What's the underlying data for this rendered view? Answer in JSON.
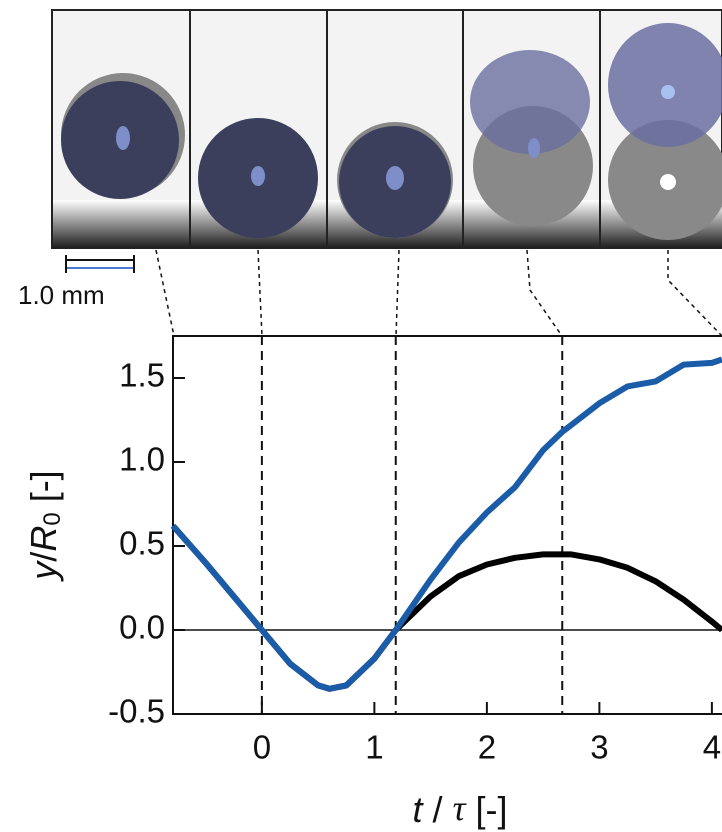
{
  "chart_data": {
    "type": "line",
    "scale_bar": "1.0 mm",
    "xlabel": [
      "t",
      " / ",
      "τ",
      " [-]"
    ],
    "ylabel": [
      "y",
      "/",
      "R",
      "0",
      " [-]"
    ],
    "x": [
      -0.79,
      -0.5,
      -0.25,
      0,
      0.25,
      0.5,
      0.6,
      0.75,
      1.0,
      1.19,
      1.5,
      1.75,
      2.0,
      2.25,
      2.5,
      2.67,
      2.75,
      3.0,
      3.25,
      3.5,
      3.75,
      4.0,
      4.09
    ],
    "series": [
      {
        "color": "#000000",
        "values": [
          0.62,
          0.4,
          0.2,
          0.0,
          -0.2,
          -0.33,
          -0.35,
          -0.33,
          -0.17,
          0.0,
          0.2,
          0.32,
          0.39,
          0.43,
          0.45,
          0.45,
          0.45,
          0.42,
          0.37,
          0.29,
          0.18,
          0.05,
          0.0
        ]
      },
      {
        "color": "#1a5ca8",
        "values": [
          0.62,
          0.4,
          0.2,
          0.0,
          -0.2,
          -0.33,
          -0.35,
          -0.33,
          -0.17,
          0.0,
          0.3,
          0.52,
          0.7,
          0.85,
          1.07,
          1.18,
          1.22,
          1.35,
          1.45,
          1.48,
          1.58,
          1.59,
          1.61
        ]
      }
    ],
    "event_times": [
      0,
      1.19,
      2.67
    ],
    "hline": 0,
    "xlim": [
      -0.79,
      4.09
    ],
    "ylim": [
      -0.5,
      1.75
    ],
    "xticks": [
      0,
      1,
      2,
      3,
      4
    ],
    "yticks": [
      {
        "value": -0.5,
        "label": "-0.5"
      },
      {
        "value": 0,
        "label": "0.0"
      },
      {
        "value": 0.5,
        "label": "0.5"
      },
      {
        "value": 1,
        "label": "1.0"
      },
      {
        "value": 1.5,
        "label": "1.5"
      }
    ]
  }
}
